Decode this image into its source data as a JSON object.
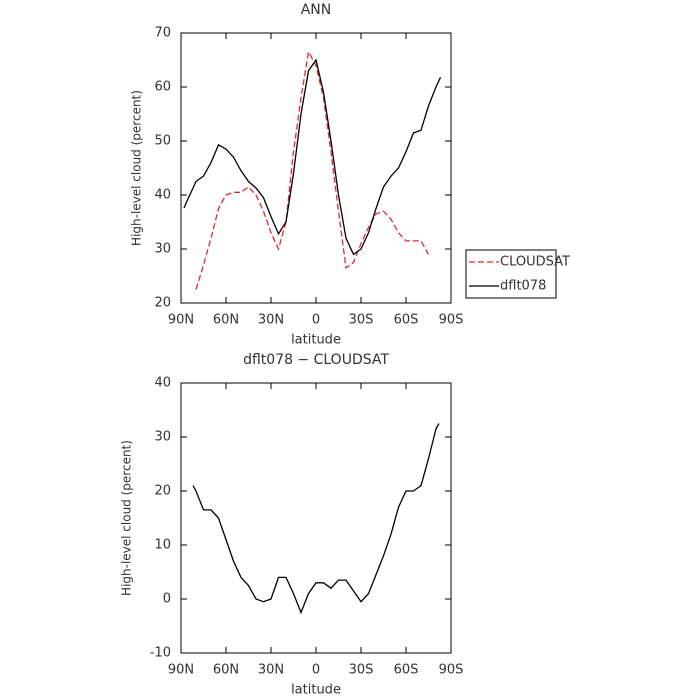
{
  "chart_data": [
    {
      "type": "line",
      "title": "ANN",
      "xlabel": "latitude",
      "ylabel": "High-level cloud (percent)",
      "x": [
        88,
        85,
        80,
        75,
        70,
        65,
        60,
        55,
        50,
        45,
        40,
        35,
        30,
        25,
        20,
        15,
        10,
        5,
        0,
        -5,
        -10,
        -15,
        -20,
        -25,
        -30,
        -35,
        -40,
        -45,
        -50,
        -55,
        -60,
        -65,
        -70,
        -75,
        -80,
        -83
      ],
      "series": [
        {
          "name": "CLOUDSAT",
          "color": "#e8282a",
          "dashed": true,
          "values": [
            null,
            null,
            22.5,
            27,
            32,
            37.5,
            40,
            40.5,
            40.5,
            41.5,
            40,
            37,
            33,
            30,
            35,
            48,
            58,
            66.5,
            64,
            58,
            48,
            37,
            26.5,
            27.5,
            31,
            34,
            36.5,
            37,
            35.5,
            33,
            31.5,
            31.5,
            31.5,
            29,
            null,
            null
          ]
        },
        {
          "name": "dflt078",
          "color": "#000000",
          "dashed": false,
          "values": [
            37.6,
            39.5,
            42.5,
            43.5,
            46,
            49.3,
            48.5,
            47,
            44.5,
            42.5,
            41.3,
            39.5,
            36,
            32.8,
            35,
            44,
            55,
            63,
            65,
            59,
            50,
            40,
            32,
            29,
            30,
            33,
            37.5,
            41.5,
            43.5,
            45,
            48,
            51.5,
            52,
            56.5,
            60,
            61.8
          ]
        }
      ],
      "xlim": [
        90,
        -90
      ],
      "xticks": [
        {
          "value": 90,
          "label": "90N"
        },
        {
          "value": 60,
          "label": "60N"
        },
        {
          "value": 30,
          "label": "30N"
        },
        0,
        {
          "value": -30,
          "label": "30S"
        },
        {
          "value": -60,
          "label": "60S"
        },
        {
          "value": -90,
          "label": "90S"
        }
      ],
      "ylim": [
        20,
        70
      ],
      "yticks": [
        20,
        30,
        40,
        50,
        60,
        70
      ],
      "legend": "right"
    },
    {
      "type": "line",
      "title": "dflt078 − CLOUDSAT",
      "xlabel": "latitude",
      "ylabel": "High-level cloud (percent)",
      "x": [
        82,
        80,
        75,
        70,
        65,
        60,
        55,
        50,
        45,
        40,
        35,
        30,
        25,
        20,
        15,
        10,
        5,
        0,
        -5,
        -10,
        -15,
        -20,
        -25,
        -30,
        -35,
        -40,
        -45,
        -50,
        -55,
        -60,
        -65,
        -70,
        -75,
        -80,
        -82
      ],
      "series": [
        {
          "color": "#000000",
          "dashed": false,
          "values": [
            21,
            20,
            16.5,
            16.5,
            15,
            11,
            7,
            4,
            2.5,
            0,
            -0.5,
            0,
            4,
            4,
            1,
            -2.5,
            1,
            3,
            3,
            2,
            3.5,
            3.5,
            1.5,
            -0.5,
            1,
            4.5,
            8,
            12,
            17,
            20,
            20,
            21,
            26,
            31.5,
            32.5
          ]
        }
      ],
      "xlim": [
        90,
        -90
      ],
      "xticks": [
        {
          "value": 90,
          "label": "90N"
        },
        {
          "value": 60,
          "label": "60N"
        },
        {
          "value": 30,
          "label": "30N"
        },
        0,
        {
          "value": -30,
          "label": "30S"
        },
        {
          "value": -60,
          "label": "60S"
        },
        {
          "value": -90,
          "label": "90S"
        }
      ],
      "ylim": [
        -10,
        40
      ],
      "yticks": [
        -10,
        0,
        10,
        20,
        30,
        40
      ]
    }
  ]
}
